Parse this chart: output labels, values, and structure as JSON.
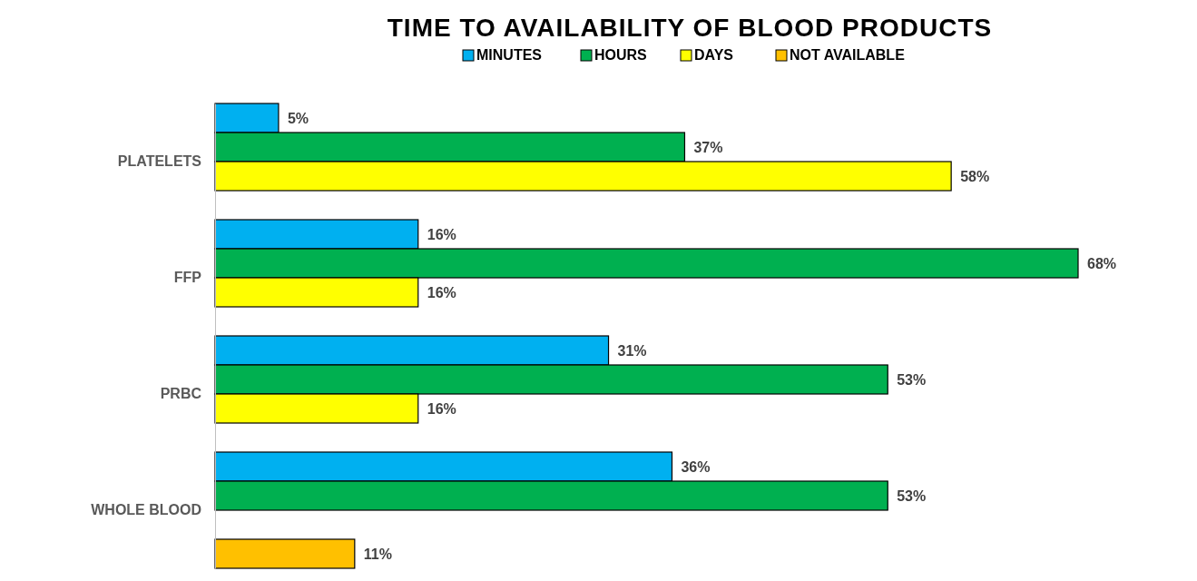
{
  "chart_data": {
    "type": "bar",
    "orientation": "horizontal",
    "title": "TIME TO AVAILABILITY OF BLOOD PRODUCTS",
    "categories": [
      "PLATELETS",
      "FFP",
      "PRBC",
      "WHOLE BLOOD"
    ],
    "series": [
      {
        "name": "MINUTES",
        "color": "#00b0f0",
        "values": [
          5,
          16,
          31,
          36
        ],
        "value_labels": [
          "5%",
          "16%",
          "31%",
          "36%"
        ]
      },
      {
        "name": "HOURS",
        "color": "#00b050",
        "values": [
          37,
          68,
          53,
          53
        ],
        "value_labels": [
          "37%",
          "68%",
          "53%",
          "53%"
        ]
      },
      {
        "name": "DAYS",
        "color": "#ffff00",
        "values": [
          58,
          16,
          16,
          null
        ],
        "value_labels": [
          "58%",
          "16%",
          "16%",
          null
        ]
      },
      {
        "name": "NOT AVAILABLE",
        "color": "#ffc000",
        "values": [
          null,
          null,
          null,
          11
        ],
        "value_labels": [
          null,
          null,
          null,
          "11%"
        ]
      }
    ],
    "tick_labels": "y",
    "legend": "top"
  }
}
